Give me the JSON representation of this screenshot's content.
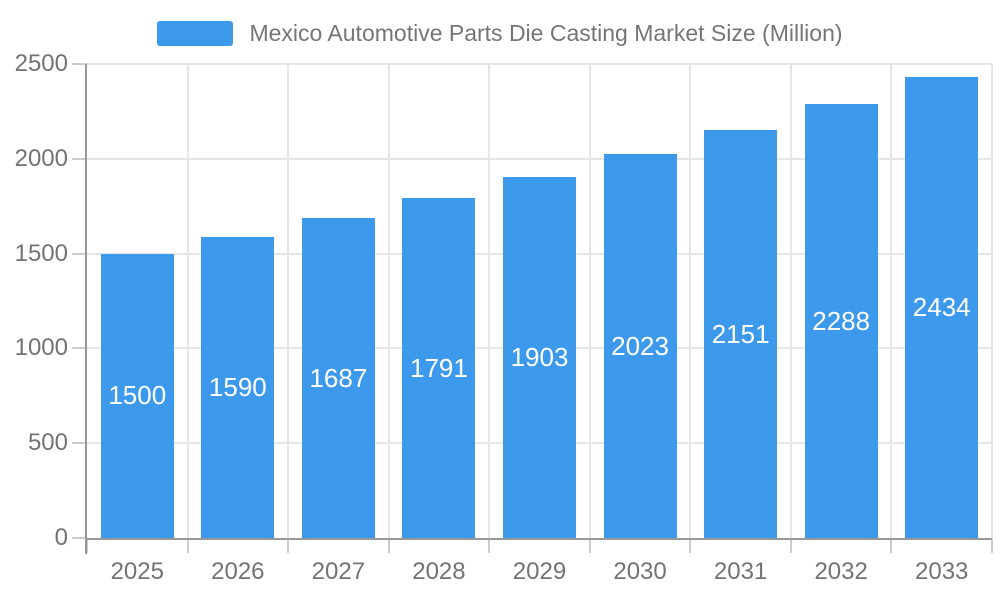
{
  "chart_data": {
    "type": "bar",
    "title": "Mexico Automotive Parts Die Casting Market Size (Million)",
    "categories": [
      "2025",
      "2026",
      "2027",
      "2028",
      "2029",
      "2030",
      "2031",
      "2032",
      "2033"
    ],
    "values": [
      1500,
      1590,
      1687,
      1791,
      1903,
      2023,
      2151,
      2288,
      2434
    ],
    "xlabel": "",
    "ylabel": "",
    "ylim": [
      0,
      2500
    ],
    "yticks": [
      0,
      500,
      1000,
      1500,
      2000,
      2500
    ],
    "grid": true,
    "legend_position": "top",
    "bar_labels_inside": true,
    "colors": {
      "bar": "#3C99EC",
      "bar_label": "#FFFFFF",
      "title_text": "#757575",
      "axis_text": "#737373",
      "axis_line": "#999999",
      "tick_line": "#CCCCCC",
      "grid_line": "#E6E6E6",
      "background": "#FFFFFF"
    }
  }
}
